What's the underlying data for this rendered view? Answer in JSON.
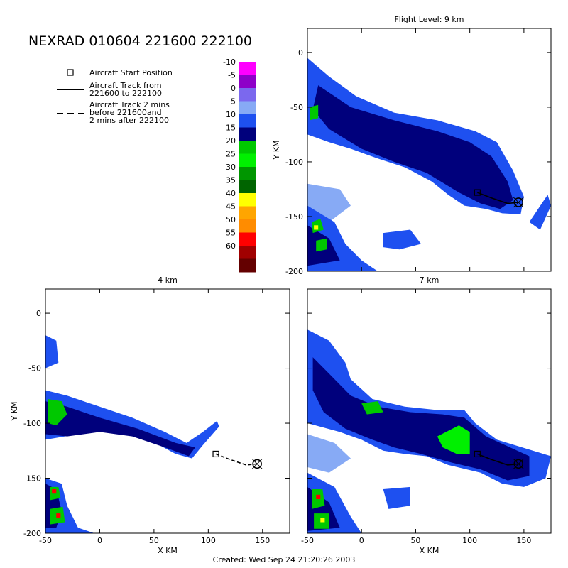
{
  "header": {
    "title": "NEXRAD 010604 221600 222100",
    "footer": "Created: Wed Sep 24 21:20:26 2003"
  },
  "legend": {
    "start_position": "Aircraft Start Position",
    "track_line1": "Aircraft Track from",
    "track_line2": "221600 to 222100",
    "track2_line1": "Aircraft Track 2 mins",
    "track2_line2": "before 221600and",
    "track2_line3": "2 mins after 222100"
  },
  "colorbar": {
    "levels": [
      "-10",
      "-5",
      "0",
      "5",
      "10",
      "15",
      "20",
      "25",
      "30",
      "35",
      "40",
      "45",
      "50",
      "55",
      "60"
    ],
    "colors": [
      "#ff00ff",
      "#8e00c8",
      "#7b68ee",
      "#87aaf5",
      "#1e50f0",
      "#00007c",
      "#00c800",
      "#00f000",
      "#009600",
      "#006400",
      "#ffff00",
      "#ffa500",
      "#ff8c00",
      "#ff0000",
      "#a00000",
      "#640000"
    ]
  },
  "chart_data": [
    {
      "type": "heatmap",
      "title": "Flight Level: 9 km",
      "xlabel": "",
      "ylabel": "Y KM",
      "xlim": [
        -50,
        175
      ],
      "ylim": [
        -200,
        22
      ],
      "x_ticks": [],
      "y_ticks": [
        "0",
        "-50",
        "-100",
        "-150",
        "-200"
      ],
      "track": {
        "x": [
          107,
          120,
          135,
          145
        ],
        "y": [
          -128,
          -133,
          -138,
          -137
        ]
      }
    },
    {
      "type": "heatmap",
      "title": "4 km",
      "xlabel": "X KM",
      "ylabel": "Y KM",
      "xlim": [
        -50,
        175
      ],
      "ylim": [
        -200,
        22
      ],
      "x_ticks": [
        "-50",
        "0",
        "50",
        "100",
        "150"
      ],
      "y_ticks": [
        "0",
        "-50",
        "-100",
        "-150",
        "-200"
      ],
      "track": {
        "x": [
          107,
          120,
          135,
          145
        ],
        "y": [
          -128,
          -133,
          -138,
          -137
        ]
      }
    },
    {
      "type": "heatmap",
      "title": "7 km",
      "xlabel": "X KM",
      "ylabel": "",
      "xlim": [
        -50,
        175
      ],
      "ylim": [
        -200,
        22
      ],
      "x_ticks": [
        "-50",
        "0",
        "50",
        "100",
        "150"
      ],
      "y_ticks": [],
      "track": {
        "x": [
          107,
          120,
          135,
          145
        ],
        "y": [
          -128,
          -133,
          -138,
          -137
        ]
      }
    }
  ]
}
